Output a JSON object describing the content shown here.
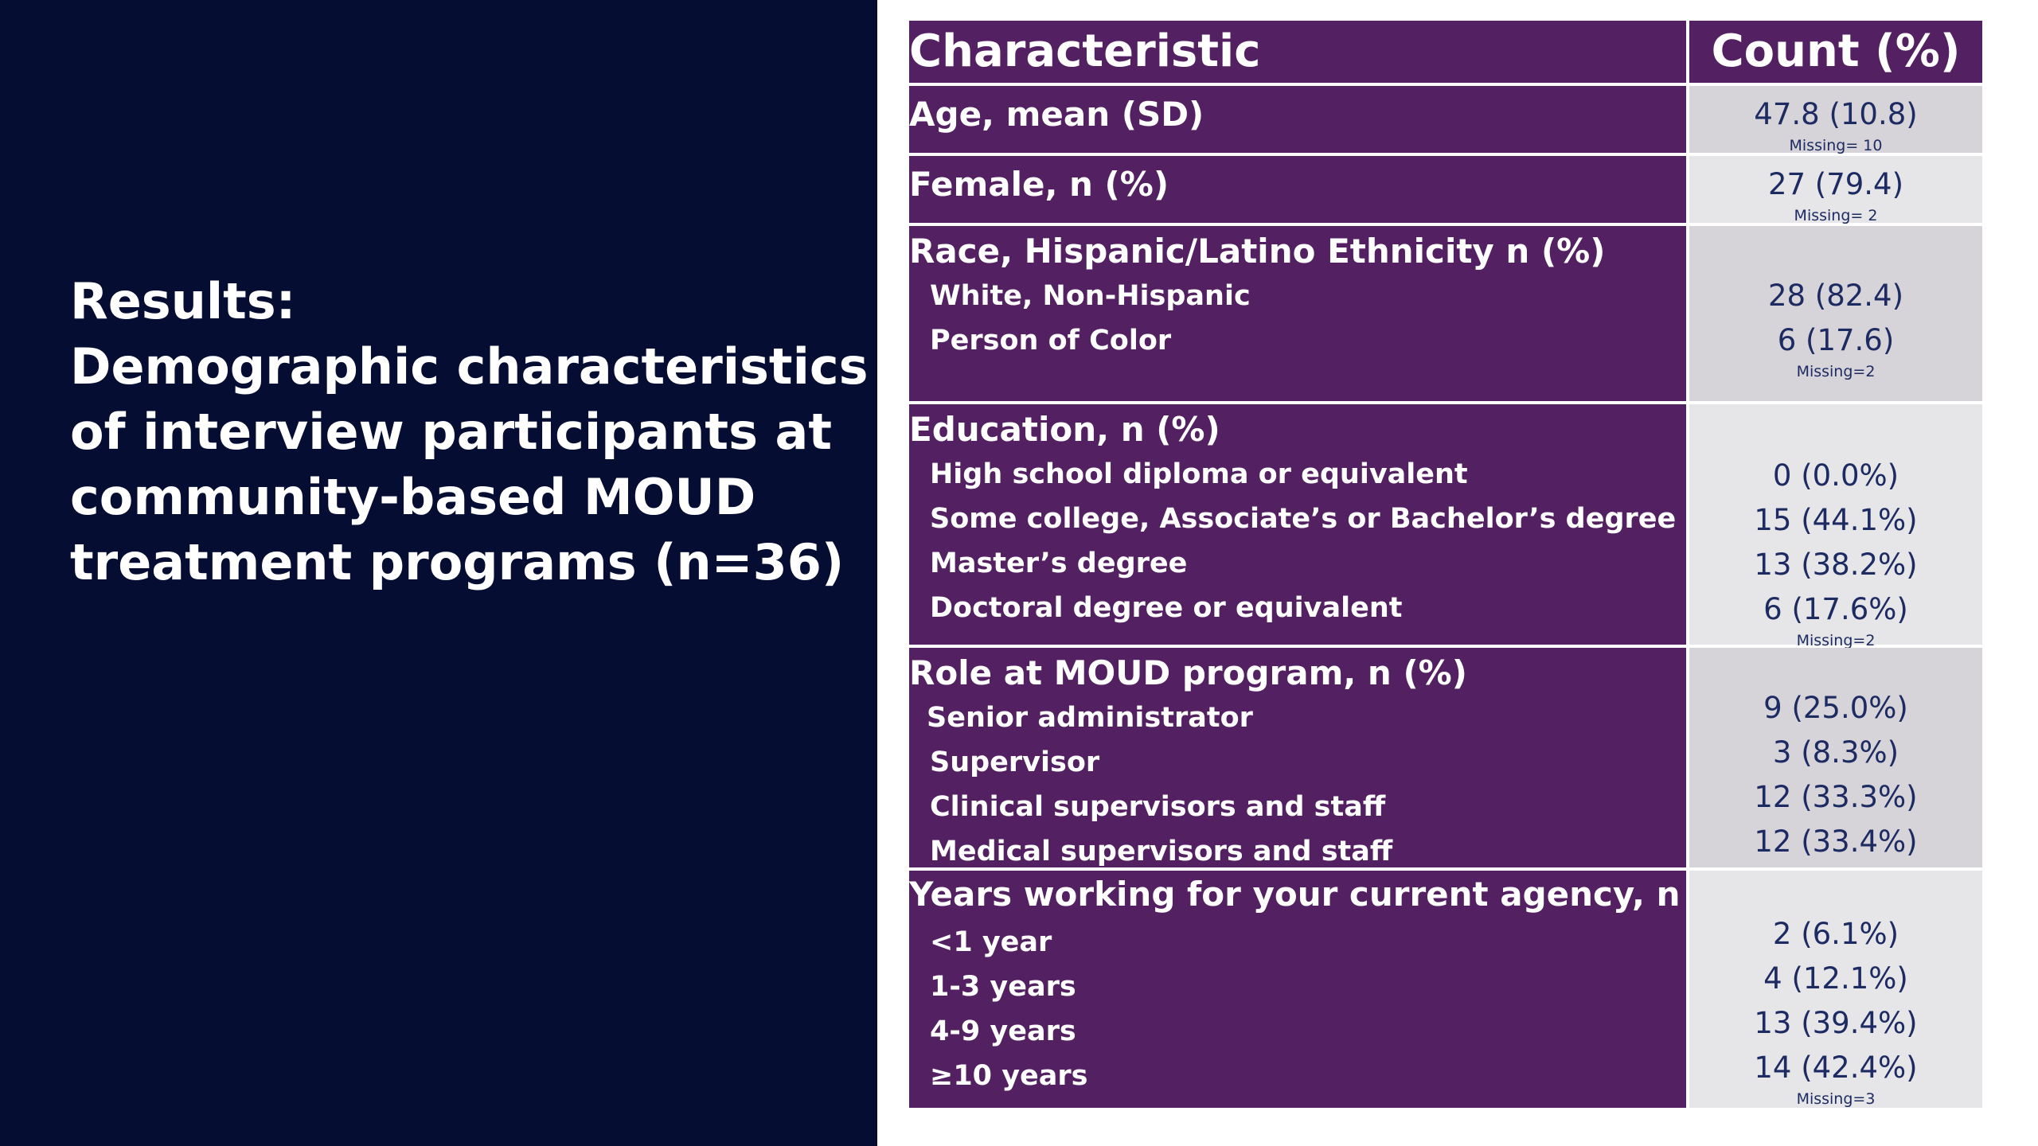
{
  "slide": {
    "title_lines": [
      "Results:",
      "Demographic characteristics",
      "of interview participants at",
      "community-based MOUD",
      "treatment programs (n=36)"
    ]
  },
  "table": {
    "header": {
      "characteristic": "Characteristic",
      "count": "Count (%)"
    },
    "rows": [
      {
        "label": "Age, mean (SD)",
        "subitems": [],
        "values": [
          "47.8 (10.8)"
        ],
        "missing": "Missing= 10"
      },
      {
        "label": "Female, n (%)",
        "subitems": [],
        "values": [
          "27 (79.4)"
        ],
        "missing": "Missing= 2"
      },
      {
        "label": "Race, Hispanic/Latino Ethnicity n (%)",
        "subitems": [
          "White, Non-Hispanic",
          "Person of Color"
        ],
        "values": [
          "28 (82.4)",
          "6 (17.6)"
        ],
        "missing": "Missing=2"
      },
      {
        "label": "Education, n (%)",
        "subitems": [
          "High school diploma or equivalent",
          "Some college, Associate’s or Bachelor’s degree",
          "Master’s degree",
          "Doctoral degree or equivalent"
        ],
        "values": [
          "0 (0.0%)",
          "15 (44.1%)",
          "13 (38.2%)",
          "6 (17.6%)"
        ],
        "missing": "Missing=2"
      },
      {
        "label": "Role at MOUD program, n (%)",
        "subitems": [
          "Senior administrator",
          "Supervisor",
          "Clinical supervisors and staff",
          "Medical supervisors and staff"
        ],
        "values": [
          "9 (25.0%)",
          "3 (8.3%)",
          "12 (33.3%)",
          "12 (33.4%)"
        ],
        "missing": ""
      },
      {
        "label": "Years working for your current agency, n (%)",
        "subitems": [
          "<1 year",
          "1-3 years",
          "4-9 years",
          "≥10 years"
        ],
        "values": [
          "2 (6.1%)",
          "4 (12.1%)",
          "13 (39.4%)",
          "14 (42.4%)"
        ],
        "missing": "Missing=3"
      }
    ]
  },
  "colors": {
    "left_panel_bg": "#050d33",
    "table_purple": "#532062",
    "value_text": "#1d2b63",
    "value_bg_a": "#d6d3d9",
    "value_bg_b": "#e6e5e8"
  }
}
